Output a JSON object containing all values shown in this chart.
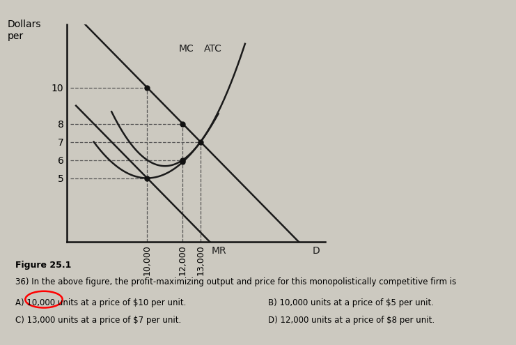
{
  "background_color": "#ccc9c0",
  "ylabel": "Dollars\nper",
  "yticks": [
    5,
    6,
    7,
    8,
    10
  ],
  "xtick_labels": [
    "10,000",
    "12,000",
    "13,000"
  ],
  "xtick_positions": [
    10000,
    12000,
    13000
  ],
  "xlim": [
    5500,
    20000
  ],
  "ylim": [
    1.5,
    13.5
  ],
  "curve_color": "#1a1a1a",
  "dashed_color": "#555555",
  "dot_color": "#111111",
  "label_MC": "MC",
  "label_ATC": "ATC",
  "label_MR": "MR",
  "label_D": "D",
  "figure_label": "Figure 25.1",
  "question": "36) In the above figure, the profit-maximizing output and price for this monopolistically competitive firm is",
  "ans_A": "A) 10,000 units at a price of $10 per unit.",
  "ans_B": "B) 10,000 units at a price of $5 per unit.",
  "ans_C": "C) 13,000 units at a price of $7 per unit.",
  "ans_D": "D) 12,000 units at a price of $8 per unit.",
  "key_points": {
    "q10k_D": [
      10000,
      10
    ],
    "q10k_MC_MR": [
      10000,
      5
    ],
    "q12k_D": [
      12000,
      8
    ],
    "q12k_MC_MR": [
      12000,
      7
    ],
    "q12k_ATC": [
      12000,
      6
    ],
    "q13k_MC_ATC": [
      13000,
      7
    ]
  }
}
